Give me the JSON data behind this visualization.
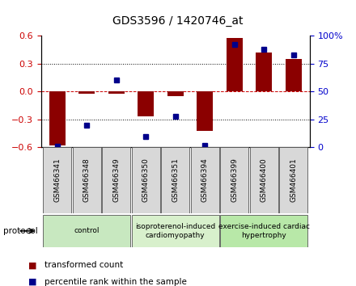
{
  "title": "GDS3596 / 1420746_at",
  "samples": [
    "GSM466341",
    "GSM466348",
    "GSM466349",
    "GSM466350",
    "GSM466351",
    "GSM466394",
    "GSM466399",
    "GSM466400",
    "GSM466401"
  ],
  "transformed_count": [
    -0.58,
    -0.02,
    -0.02,
    -0.27,
    -0.05,
    -0.42,
    0.58,
    0.42,
    0.35
  ],
  "percentile_rank": [
    1.0,
    20.0,
    60.0,
    10.0,
    28.0,
    2.0,
    92.0,
    88.0,
    83.0
  ],
  "bar_color": "#8B0000",
  "dot_color": "#00008B",
  "ylim_left": [
    -0.6,
    0.6
  ],
  "ylim_right": [
    0,
    100
  ],
  "yticks_left": [
    -0.6,
    -0.3,
    0.0,
    0.3,
    0.6
  ],
  "yticks_right": [
    0,
    25,
    50,
    75,
    100
  ],
  "ytick_labels_right": [
    "0",
    "25",
    "50",
    "75",
    "100%"
  ],
  "groups": [
    {
      "label": "control",
      "start": 0,
      "end": 3,
      "color": "#c8e8c0"
    },
    {
      "label": "isoproterenol-induced\ncardiomyopathy",
      "start": 3,
      "end": 6,
      "color": "#d8f0cc"
    },
    {
      "label": "exercise-induced cardiac\nhypertrophy",
      "start": 6,
      "end": 9,
      "color": "#b8e8a8"
    }
  ],
  "protocol_label": "protocol",
  "legend_items": [
    {
      "color": "#8B0000",
      "label": "transformed count"
    },
    {
      "color": "#00008B",
      "label": "percentile rank within the sample"
    }
  ],
  "bg_color": "#ffffff",
  "plot_bg_color": "#ffffff",
  "zero_line_color": "#cc0000",
  "bar_width": 0.55
}
